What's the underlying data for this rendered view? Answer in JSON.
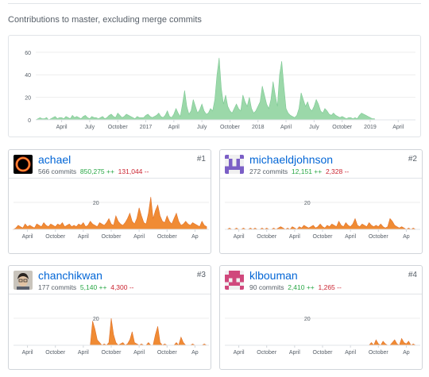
{
  "heading": "Contributions to master, excluding merge commits",
  "colors": {
    "main_fill": "#9bd8a9",
    "main_stroke": "#7dc894",
    "user_fill": "#f08b34",
    "user_stroke": "#e0722a",
    "grid": "#eeeeee",
    "axis_text": "#586069"
  },
  "chart_data": [
    {
      "type": "area",
      "title": "",
      "yticks": [
        0,
        20,
        40,
        60
      ],
      "ylim": [
        0,
        62
      ],
      "xlim": [
        0,
        176
      ],
      "xtick_positions": [
        12,
        25,
        38,
        51,
        64,
        77,
        90,
        103,
        116,
        129,
        142,
        155,
        168
      ],
      "xtick_labels": [
        "April",
        "July",
        "October",
        "2017",
        "April",
        "July",
        "October",
        "2018",
        "April",
        "July",
        "October",
        "2019",
        "April"
      ],
      "series": [
        {
          "values": [
            0,
            1,
            2,
            1,
            1,
            2,
            0,
            1,
            2,
            3,
            1,
            2,
            2,
            1,
            3,
            2,
            1,
            4,
            2,
            3,
            2,
            1,
            3,
            4,
            2,
            1,
            3,
            2,
            2,
            1,
            2,
            3,
            1,
            2,
            4,
            5,
            3,
            2,
            6,
            4,
            2,
            3,
            5,
            4,
            3,
            2,
            1,
            3,
            2,
            2,
            2,
            4,
            5,
            3,
            2,
            3,
            4,
            6,
            3,
            2,
            4,
            8,
            3,
            2,
            5,
            10,
            6,
            3,
            14,
            26,
            12,
            5,
            8,
            18,
            12,
            6,
            9,
            14,
            8,
            5,
            6,
            10,
            8,
            18,
            40,
            55,
            28,
            14,
            22,
            12,
            8,
            6,
            10,
            14,
            10,
            8,
            22,
            16,
            12,
            20,
            10,
            6,
            8,
            12,
            16,
            30,
            22,
            14,
            10,
            18,
            34,
            22,
            12,
            40,
            52,
            30,
            10,
            6,
            4,
            3,
            2,
            4,
            10,
            24,
            18,
            12,
            16,
            10,
            8,
            12,
            18,
            14,
            8,
            6,
            10,
            8,
            5,
            4,
            6,
            4,
            3,
            2,
            3,
            2,
            1,
            2,
            2,
            1,
            2,
            1,
            4,
            6,
            5,
            4,
            3,
            2,
            1,
            1
          ]
        }
      ]
    },
    {
      "type": "area",
      "yticks": [
        20
      ],
      "ylim": [
        0,
        30
      ],
      "xlim": [
        0,
        84
      ],
      "xtick_positions": [
        6,
        18,
        30,
        42,
        54,
        66,
        78
      ],
      "xtick_labels": [
        "April",
        "October",
        "April",
        "October",
        "April",
        "October",
        "Ap"
      ],
      "series": [
        {
          "name": "achael",
          "values": [
            0,
            1,
            3,
            2,
            1,
            4,
            2,
            3,
            2,
            1,
            4,
            3,
            2,
            5,
            3,
            2,
            4,
            3,
            2,
            4,
            3,
            5,
            2,
            3,
            4,
            2,
            3,
            2,
            4,
            3,
            5,
            2,
            3,
            6,
            4,
            3,
            2,
            5,
            4,
            3,
            5,
            8,
            4,
            3,
            10,
            6,
            4,
            3,
            5,
            8,
            12,
            6,
            4,
            8,
            16,
            10,
            5,
            4,
            12,
            24,
            8,
            14,
            18,
            10,
            6,
            5,
            10,
            6,
            4,
            8,
            12,
            6,
            3,
            4,
            6,
            4,
            3,
            5,
            4,
            3,
            2,
            6,
            3,
            2
          ]
        }
      ]
    },
    {
      "type": "area",
      "yticks": [
        20
      ],
      "ylim": [
        0,
        30
      ],
      "xlim": [
        0,
        84
      ],
      "xtick_positions": [
        6,
        18,
        30,
        42,
        54,
        66,
        78
      ],
      "xtick_labels": [
        "April",
        "October",
        "April",
        "October",
        "April",
        "October",
        "Ap"
      ],
      "series": [
        {
          "name": "michaeldjohnson",
          "values": [
            0,
            0,
            1,
            0,
            0,
            1,
            0,
            0,
            1,
            0,
            0,
            1,
            0,
            1,
            0,
            0,
            1,
            0,
            1,
            0,
            0,
            1,
            0,
            1,
            2,
            1,
            0,
            1,
            0,
            2,
            1,
            0,
            2,
            1,
            3,
            2,
            1,
            2,
            3,
            1,
            2,
            4,
            2,
            1,
            3,
            2,
            4,
            3,
            2,
            6,
            3,
            2,
            5,
            3,
            2,
            4,
            8,
            3,
            2,
            4,
            3,
            2,
            5,
            3,
            2,
            3,
            2,
            4,
            2,
            1,
            2,
            8,
            6,
            3,
            2,
            1,
            2,
            1,
            0,
            1,
            0,
            1,
            0,
            0
          ]
        }
      ]
    },
    {
      "type": "area",
      "yticks": [
        20
      ],
      "ylim": [
        0,
        30
      ],
      "xlim": [
        0,
        84
      ],
      "xtick_positions": [
        6,
        18,
        30,
        42,
        54,
        66,
        78
      ],
      "xtick_labels": [
        "April",
        "October",
        "April",
        "October",
        "April",
        "October",
        "Ap"
      ],
      "series": [
        {
          "name": "chanchikwan",
          "values": [
            0,
            0,
            0,
            0,
            0,
            0,
            0,
            0,
            0,
            0,
            0,
            0,
            0,
            0,
            0,
            0,
            0,
            0,
            0,
            0,
            0,
            0,
            0,
            0,
            0,
            0,
            0,
            0,
            0,
            0,
            0,
            0,
            0,
            0,
            18,
            12,
            4,
            2,
            0,
            1,
            0,
            2,
            20,
            8,
            2,
            0,
            1,
            2,
            0,
            1,
            4,
            10,
            2,
            1,
            0,
            1,
            0,
            0,
            2,
            0,
            0,
            8,
            14,
            2,
            0,
            1,
            0,
            0,
            0,
            0,
            2,
            0,
            6,
            2,
            0,
            0,
            0,
            1,
            0,
            0,
            0,
            0,
            1,
            0
          ]
        }
      ]
    },
    {
      "type": "area",
      "yticks": [
        20
      ],
      "ylim": [
        0,
        30
      ],
      "xlim": [
        0,
        84
      ],
      "xtick_positions": [
        6,
        18,
        30,
        42,
        54,
        66,
        78
      ],
      "xtick_labels": [
        "April",
        "October",
        "April",
        "October",
        "April",
        "October",
        "Ap"
      ],
      "series": [
        {
          "name": "klbouman",
          "values": [
            0,
            0,
            0,
            0,
            0,
            0,
            0,
            0,
            0,
            0,
            0,
            0,
            0,
            0,
            0,
            0,
            0,
            0,
            0,
            0,
            0,
            0,
            0,
            0,
            0,
            0,
            0,
            0,
            0,
            0,
            0,
            0,
            0,
            0,
            0,
            0,
            0,
            0,
            0,
            0,
            0,
            0,
            0,
            0,
            0,
            0,
            0,
            0,
            0,
            0,
            0,
            0,
            0,
            0,
            0,
            0,
            0,
            0,
            0,
            0,
            0,
            0,
            0,
            2,
            0,
            4,
            1,
            0,
            3,
            1,
            0,
            0,
            2,
            4,
            1,
            0,
            5,
            2,
            1,
            3,
            0,
            1,
            0,
            0
          ]
        }
      ]
    }
  ],
  "contributors": [
    {
      "rank": "#1",
      "username": "achael",
      "commits": "566 commits",
      "additions": "850,275 ++",
      "deletions": "131,044 --",
      "avatar": "black-hole-avatar"
    },
    {
      "rank": "#2",
      "username": "michaeldjohnson",
      "commits": "272 commits",
      "additions": "12,151 ++",
      "deletions": "2,328 --",
      "avatar": "purple-identicon-avatar"
    },
    {
      "rank": "#3",
      "username": "chanchikwan",
      "commits": "177 commits",
      "additions": "5,140 ++",
      "deletions": "4,300 --",
      "avatar": "photo-avatar"
    },
    {
      "rank": "#4",
      "username": "klbouman",
      "commits": "90 commits",
      "additions": "2,410 ++",
      "deletions": "1,265 --",
      "avatar": "pink-identicon-avatar"
    }
  ]
}
